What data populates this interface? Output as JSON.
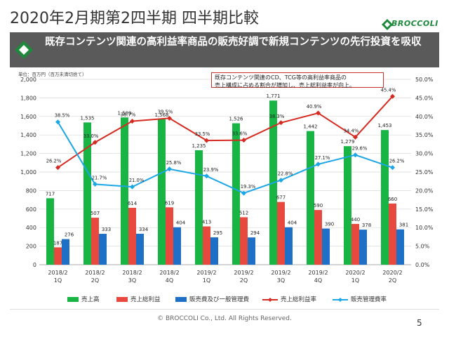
{
  "page": {
    "title": "2020年2月期第2四半期 四半期比較",
    "logo_text": "BROCCOLI",
    "banner": "既存コンテンツ関連の高利益率商品の販売好調で新規コンテンツの先行投資を吸収",
    "unit": "単位：百万円（百万未満切捨て）",
    "annotation_line1": "既存コンテンツ関連のCD、TCG等の高利益率商品の",
    "annotation_line2": "売上構成に占める割合が増加し、売上総利益率が向上。",
    "footer": "© BROCCOLI Co., Ltd. All Rights Reserved.",
    "page_number": "5",
    "colors": {
      "green": "#18b545",
      "red": "#e8493f",
      "blue": "#1e6fc6",
      "line_red": "#d52b22",
      "line_blue": "#1ba6e6",
      "banner": "#5a5a5a"
    }
  },
  "chart_data": {
    "type": "bar",
    "categories": [
      [
        "2018/2",
        "1Q"
      ],
      [
        "2018/2",
        "2Q"
      ],
      [
        "2018/2",
        "3Q"
      ],
      [
        "2018/2",
        "4Q"
      ],
      [
        "2019/2",
        "1Q"
      ],
      [
        "2019/2",
        "2Q"
      ],
      [
        "2019/2",
        "3Q"
      ],
      [
        "2019/2",
        "4Q"
      ],
      [
        "2020/2",
        "1Q"
      ],
      [
        "2020/2",
        "2Q"
      ]
    ],
    "series": [
      {
        "name": "売上高",
        "kind": "bar",
        "axis": "left",
        "color": "#18b545",
        "values": [
          717,
          1535,
          1589,
          1568,
          1235,
          1526,
          1771,
          1442,
          1279,
          1453
        ],
        "labels": [
          "717",
          "1,535",
          "1,589",
          "1,568",
          "1,235",
          "1,526",
          "1,771",
          "1,442",
          "1,279",
          "1,453"
        ]
      },
      {
        "name": "売上総利益",
        "kind": "bar",
        "axis": "left",
        "color": "#e8493f",
        "values": [
          187,
          507,
          614,
          619,
          413,
          512,
          677,
          590,
          440,
          660
        ],
        "labels": [
          "187",
          "507",
          "614",
          "619",
          "413",
          "512",
          "677",
          "590",
          "440",
          "660"
        ]
      },
      {
        "name": "販売費及び一般管理費",
        "kind": "bar",
        "axis": "left",
        "color": "#1e6fc6",
        "values": [
          276,
          333,
          334,
          404,
          295,
          294,
          404,
          390,
          378,
          381
        ],
        "labels": [
          "276",
          "333",
          "334",
          "404",
          "295",
          "294",
          "404",
          "390",
          "378",
          "381"
        ]
      },
      {
        "name": "売上総利益率",
        "kind": "line",
        "axis": "right",
        "color": "#d52b22",
        "values": [
          26.2,
          33.0,
          38.7,
          39.5,
          33.5,
          33.6,
          38.3,
          40.9,
          34.4,
          45.4
        ],
        "labels": [
          "26.2%",
          "33.0%",
          "38.7%",
          "39.5%",
          "33.5%",
          "33.6%",
          "38.3%",
          "40.9%",
          "34.4%",
          "45.4%"
        ]
      },
      {
        "name": "販売管理費率",
        "kind": "line",
        "axis": "right",
        "color": "#1ba6e6",
        "values": [
          38.5,
          21.7,
          21.0,
          25.8,
          23.9,
          19.3,
          22.8,
          27.1,
          29.6,
          26.2
        ],
        "labels": [
          "38.5%",
          "21.7%",
          "21.0%",
          "25.8%",
          "23.9%",
          "19.3%",
          "22.8%",
          "27.1%",
          "29.6%",
          "26.2%"
        ]
      }
    ],
    "ylim": [
      0,
      2000
    ],
    "yticks": [
      "0",
      "200",
      "400",
      "600",
      "800",
      "1,000",
      "1,200",
      "1,400",
      "1,600",
      "1,800",
      "2,000"
    ],
    "y2lim": [
      0,
      50
    ],
    "y2ticks": [
      "0.0%",
      "5.0%",
      "10.0%",
      "15.0%",
      "20.0%",
      "25.0%",
      "30.0%",
      "35.0%",
      "40.0%",
      "45.0%",
      "50.0%"
    ],
    "grid": true,
    "legend": "bottom"
  }
}
